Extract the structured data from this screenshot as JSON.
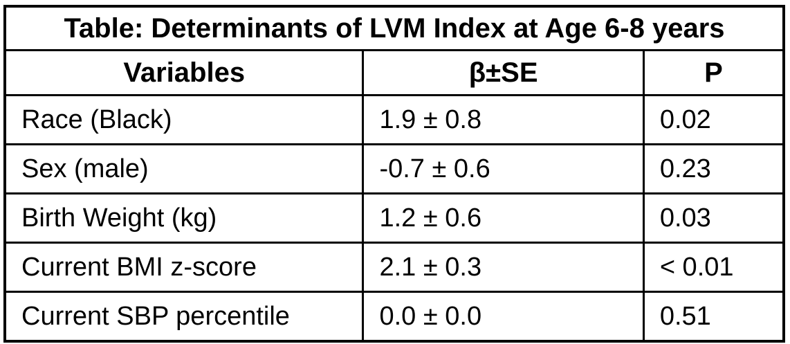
{
  "chart_data": {
    "type": "table",
    "title": "Table: Determinants of LVM Index at Age 6-8 years",
    "columns": {
      "variables": "Variables",
      "beta_se": "β±SE",
      "p": "P"
    },
    "rows": [
      {
        "variable": "Race (Black)",
        "beta_se": "1.9 ± 0.8",
        "p": "0.02"
      },
      {
        "variable": "Sex (male)",
        "beta_se": "-0.7 ± 0.6",
        "p": "0.23"
      },
      {
        "variable": "Birth Weight (kg)",
        "beta_se": "1.2 ± 0.6",
        "p": "0.03"
      },
      {
        "variable": "Current BMI z-score",
        "beta_se": "2.1 ± 0.3",
        "p": "< 0.01"
      },
      {
        "variable": "Current SBP percentile",
        "beta_se": "0.0 ± 0.0",
        "p": "0.51"
      }
    ],
    "layout": {
      "legend": "none",
      "grid": "full-borders"
    },
    "colors": {
      "border": "#000000",
      "text": "#000000",
      "background": "#ffffff"
    }
  }
}
